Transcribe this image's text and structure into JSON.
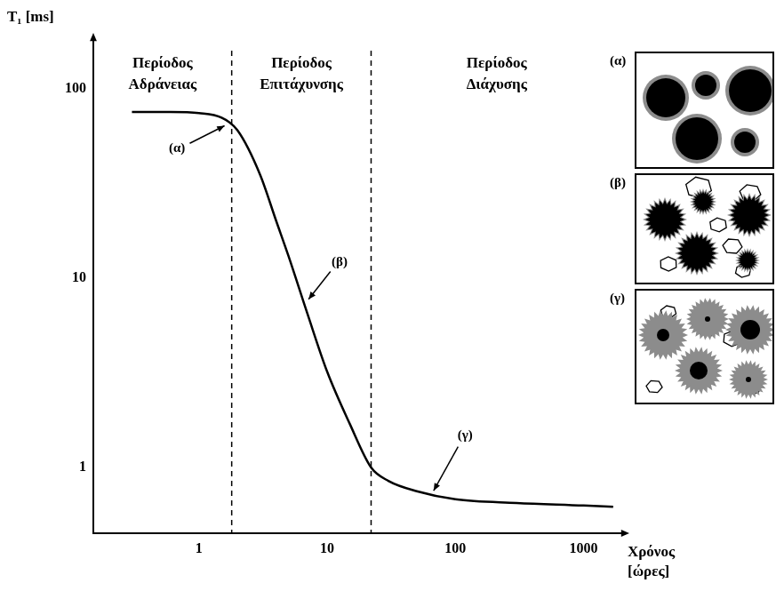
{
  "chart_data": {
    "type": "line",
    "x_label": "Χρόνος [ώρες]",
    "y_label": "T₁ [ms]",
    "x": [
      0.3,
      0.6,
      1,
      1.5,
      2,
      3,
      4,
      5,
      7,
      10,
      15,
      22,
      30,
      50,
      100,
      300,
      1000,
      1700
    ],
    "values": [
      75,
      75,
      74,
      70,
      60,
      35,
      20,
      13,
      6.5,
      3.2,
      1.7,
      1.0,
      0.85,
      0.75,
      0.68,
      0.65,
      0.63,
      0.62
    ],
    "color": "#000000",
    "log": true,
    "grid": false,
    "xlim": [
      0.15,
      2000
    ],
    "ylim": [
      0.45,
      180
    ],
    "xticks": [
      1,
      10,
      100,
      1000
    ],
    "yticks": [
      1,
      10,
      100
    ],
    "period_boundaries": [
      1.8,
      22
    ],
    "period_labels": [
      "Περίοδος Αδράνειας",
      "Περίοδος Επιτάχυνσης",
      "Περίοδος Διάχυσης"
    ],
    "annotations": [
      {
        "text": "(α)",
        "x": 1.7,
        "y": 65
      },
      {
        "text": "(β)",
        "x": 6.8,
        "y": 7.4
      },
      {
        "text": "(γ)",
        "x": 65,
        "y": 0.72
      }
    ]
  },
  "panels": [
    {
      "label": "(α)"
    },
    {
      "label": "(β)"
    },
    {
      "label": "(γ)"
    }
  ]
}
